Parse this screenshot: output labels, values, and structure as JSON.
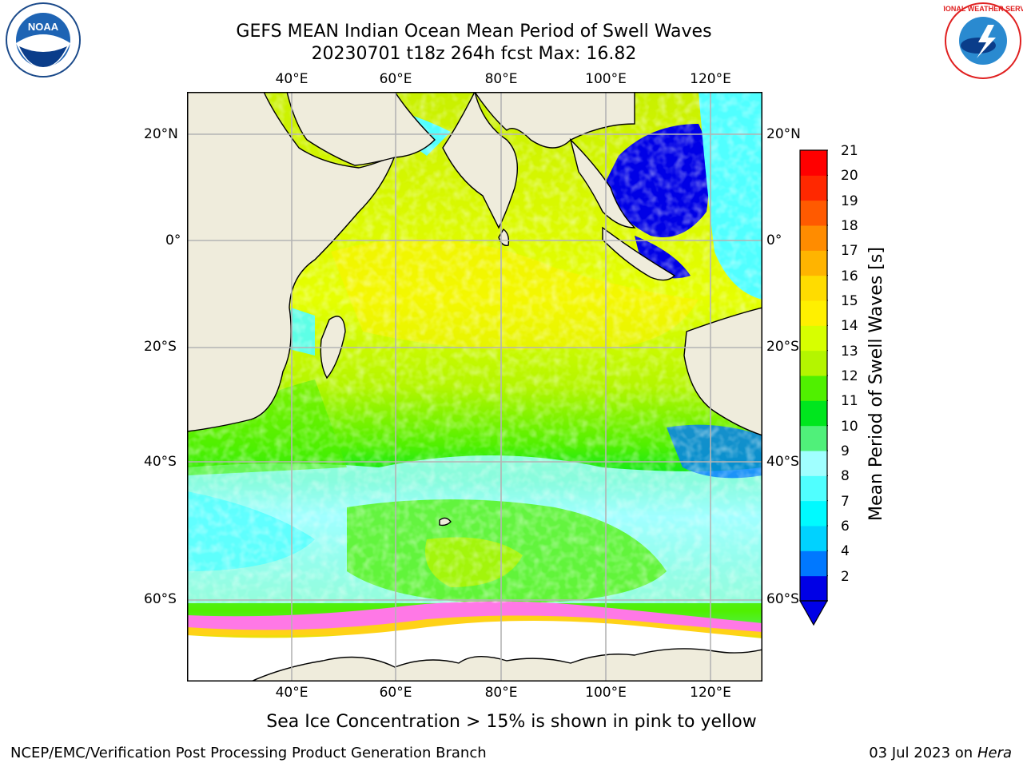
{
  "title": {
    "line1": "GEFS MEAN Indian Ocean Mean Period of Swell Waves",
    "line2": "20230701 t18z 264h fcst   Max: 16.82"
  },
  "axes": {
    "lon_labels": [
      "40°E",
      "60°E",
      "80°E",
      "100°E",
      "120°E"
    ],
    "lat_labels": [
      "20°N",
      "0°",
      "20°S",
      "40°S",
      "60°S"
    ]
  },
  "colorbar": {
    "label": "Mean Period of Swell Waves [s]",
    "ticks": [
      "2",
      "4",
      "6",
      "7",
      "8",
      "9",
      "10",
      "11",
      "12",
      "13",
      "14",
      "15",
      "16",
      "17",
      "18",
      "19",
      "20",
      "21"
    ],
    "colors": [
      "#0000e6",
      "#0078ff",
      "#00d2ff",
      "#00faff",
      "#50ffff",
      "#a0ffff",
      "#50f07a",
      "#00e61e",
      "#50f000",
      "#b4f500",
      "#d7ff00",
      "#fff000",
      "#ffdc00",
      "#ffb400",
      "#ff8c00",
      "#ff5a00",
      "#ff2800",
      "#ff0000"
    ],
    "extend": "min"
  },
  "ice_note": "Sea Ice Concentration > 15% is shown in pink to yellow",
  "footer": {
    "left": "NCEP/EMC/Verification Post Processing Product Generation Branch",
    "right_date": "03 Jul 2023 on ",
    "right_host": "Hera"
  },
  "logos": {
    "left": "NOAA",
    "right": "NATIONAL WEATHER SERVICE"
  },
  "map_colors": {
    "land": "#efecdc",
    "ice": "#ffffff",
    "grid": "#b4b4b4"
  }
}
